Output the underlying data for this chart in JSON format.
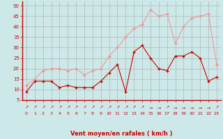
{
  "x": [
    0,
    1,
    2,
    3,
    4,
    5,
    6,
    7,
    8,
    9,
    10,
    11,
    12,
    13,
    14,
    15,
    16,
    17,
    18,
    19,
    20,
    21,
    22,
    23
  ],
  "wind_mean": [
    9,
    14,
    14,
    14,
    11,
    12,
    11,
    11,
    11,
    14,
    18,
    22,
    9,
    28,
    31,
    25,
    20,
    19,
    26,
    26,
    28,
    25,
    14,
    16
  ],
  "wind_gust": [
    12,
    15,
    19,
    20,
    20,
    19,
    20,
    17,
    19,
    20,
    26,
    30,
    35,
    39,
    41,
    48,
    45,
    46,
    32,
    40,
    44,
    45,
    46,
    22
  ],
  "bg_color": "#cce8e8",
  "grid_color": "#aaaaaa",
  "line_mean_color": "#cc0000",
  "line_gust_color": "#ee9999",
  "xlabel": "Vent moyen/en rafales ( km/h )",
  "xlabel_color": "#cc0000",
  "yticks": [
    5,
    10,
    15,
    20,
    25,
    30,
    35,
    40,
    45,
    50
  ],
  "ylim": [
    5,
    52
  ],
  "xlim": [
    -0.5,
    23.5
  ],
  "arrows": [
    "↗",
    "↗",
    "↗",
    "↗",
    "↗",
    "↗",
    "↗",
    "↗",
    "↗",
    "↗",
    "↗",
    "↗",
    "↗",
    "↗",
    "↗",
    "→",
    "→",
    "↗",
    "→",
    "→",
    "→",
    "→",
    "→",
    "↗"
  ]
}
